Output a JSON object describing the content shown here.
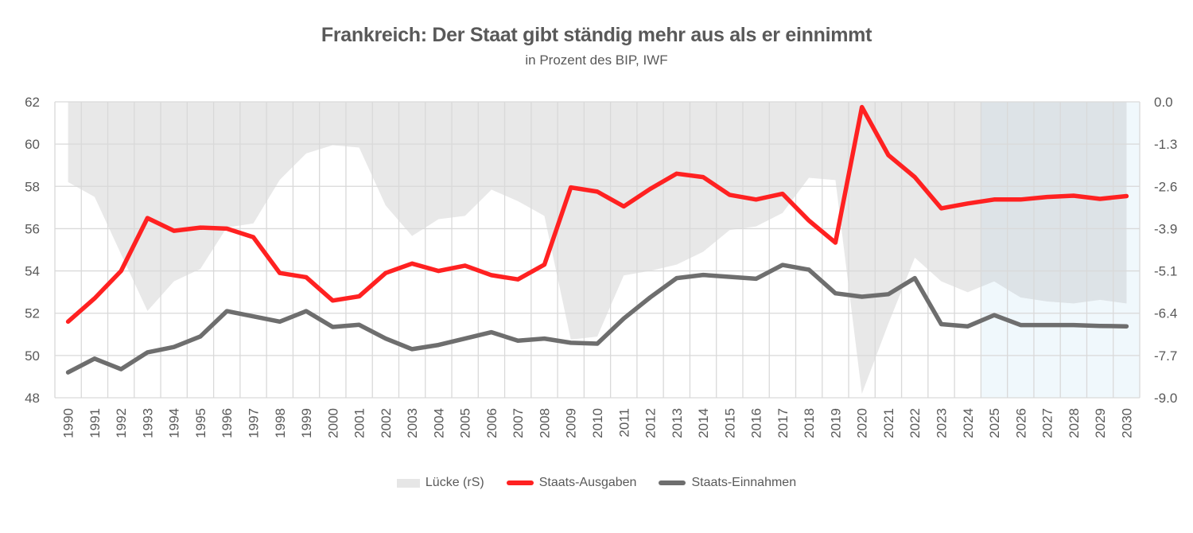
{
  "chart_data": {
    "type": "line",
    "title": "Frankreich: Der Staat gibt ständig mehr aus als er einnimmt",
    "subtitle": "in Prozent des BIP, IWF",
    "xlabel": "",
    "ylabel": "",
    "y2label": "",
    "categories": [
      "1990",
      "1991",
      "1992",
      "1993",
      "1994",
      "1995",
      "1996",
      "1997",
      "1998",
      "1999",
      "2000",
      "2001",
      "2002",
      "2003",
      "2004",
      "2005",
      "2006",
      "2007",
      "2008",
      "2009",
      "2010",
      "2011",
      "2012",
      "2013",
      "2014",
      "2015",
      "2016",
      "2017",
      "2018",
      "2019",
      "2020",
      "2021",
      "2022",
      "2023",
      "2024",
      "2025",
      "2026",
      "2027",
      "2028",
      "2029",
      "2030"
    ],
    "ylim": [
      48,
      62
    ],
    "yticks": [
      "62",
      "60",
      "58",
      "56",
      "54",
      "52",
      "50",
      "48"
    ],
    "y2lim": [
      -9.0,
      0.0
    ],
    "y2ticks": [
      "0.0",
      "-1.3",
      "-2.6",
      "-3.9",
      "-5.1",
      "-6.4",
      "-7.7",
      "-9.0"
    ],
    "grid": true,
    "legend_position": "bottom",
    "forecast_from": "2025",
    "series": [
      {
        "name": "Lücke (rS)",
        "type": "area",
        "axis": "right",
        "color": "#e6e6e6",
        "values": [
          -2.44,
          -2.89,
          -4.63,
          -6.36,
          -5.46,
          -5.08,
          -3.82,
          -3.7,
          -2.37,
          -1.57,
          -1.32,
          -1.39,
          -3.15,
          -4.08,
          -3.57,
          -3.47,
          -2.67,
          -3.02,
          -3.47,
          -7.23,
          -7.14,
          -5.28,
          -5.14,
          -4.95,
          -4.56,
          -3.9,
          -3.79,
          -3.38,
          -2.31,
          -2.38,
          -8.88,
          -6.75,
          -4.74,
          -5.46,
          -5.79,
          -5.46,
          -5.95,
          -6.07,
          -6.13,
          -6.02,
          -6.13
        ]
      },
      {
        "name": "Staats-Ausgaben",
        "type": "line",
        "axis": "left",
        "color": "#ff2121",
        "values": [
          51.6,
          52.7,
          54.0,
          56.5,
          55.9,
          56.05,
          56.0,
          55.6,
          53.9,
          53.7,
          52.6,
          52.8,
          53.9,
          54.35,
          54.0,
          54.25,
          53.8,
          53.6,
          54.3,
          57.95,
          57.75,
          57.05,
          57.88,
          58.6,
          58.44,
          57.6,
          57.38,
          57.65,
          56.38,
          55.34,
          61.75,
          59.48,
          58.44,
          56.96,
          57.19,
          57.38,
          57.38,
          57.5,
          57.56,
          57.41,
          57.54
        ]
      },
      {
        "name": "Staats-Einnahmen",
        "type": "line",
        "axis": "left",
        "color": "#6e6e6e",
        "values": [
          49.2,
          49.85,
          49.35,
          50.15,
          50.4,
          50.9,
          52.1,
          51.85,
          51.6,
          52.1,
          51.35,
          51.45,
          50.8,
          50.3,
          50.5,
          50.8,
          51.1,
          50.7,
          50.8,
          50.6,
          50.56,
          51.75,
          52.75,
          53.66,
          53.81,
          53.72,
          53.63,
          54.28,
          54.06,
          52.94,
          52.78,
          52.9,
          53.66,
          51.48,
          51.38,
          51.91,
          51.44,
          51.44,
          51.44,
          51.4,
          51.38
        ]
      }
    ],
    "colors": {
      "grid": "#d9d9d9",
      "forecast_band": "#f0f8fc",
      "text": "#595959"
    }
  }
}
